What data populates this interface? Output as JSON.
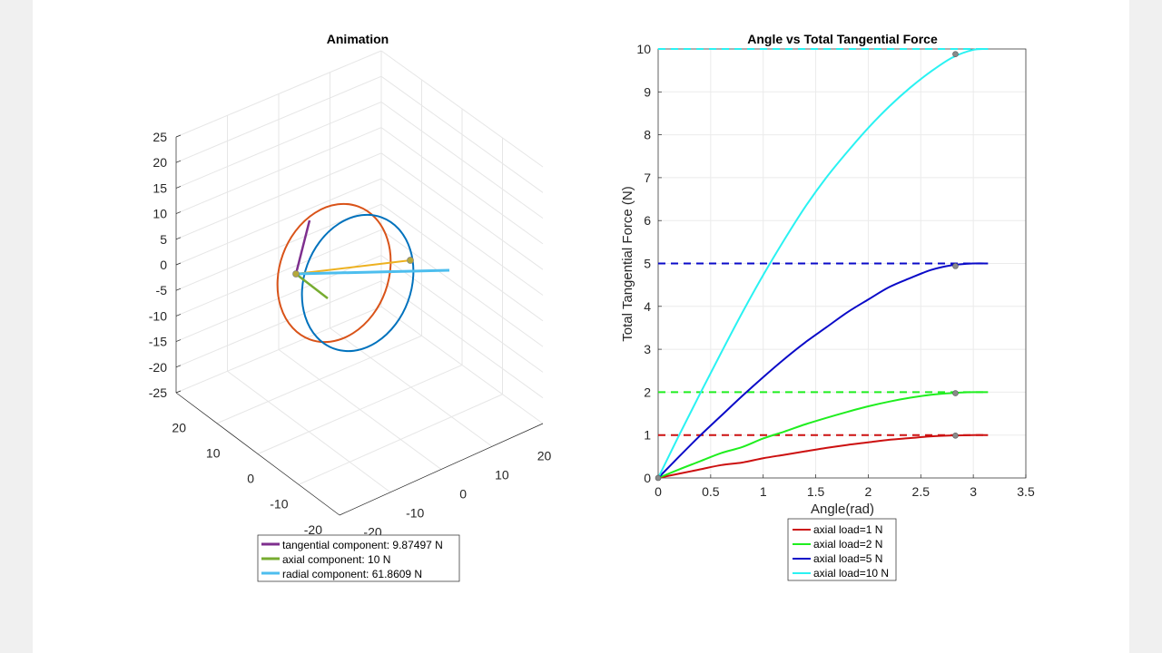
{
  "chart_data": [
    {
      "type": "line",
      "title": "Animation",
      "is_3d": true,
      "grid": true,
      "zlim": [
        -25,
        25
      ],
      "xlim": [
        -20,
        20
      ],
      "ylim": [
        -20,
        20
      ],
      "z_ticks": [
        "25",
        "20",
        "15",
        "10",
        "5",
        "0",
        "-5",
        "-10",
        "-15",
        "-20",
        "-25"
      ],
      "y_ticks": [
        "20",
        "10",
        "0",
        "-10",
        "-20"
      ],
      "x_ticks": [
        "20",
        "10",
        "0",
        "-10",
        "-20"
      ],
      "legend": {
        "position": "bottom",
        "entries": [
          {
            "label": "tangential component: 9.87497 N",
            "color": "#7e2f8e"
          },
          {
            "label": "axial component: 10 N",
            "color": "#77ac30"
          },
          {
            "label": "radial component: 61.8609 N",
            "color": "#4dbeee"
          }
        ]
      },
      "extra_series_colors": {
        "circle_a": "#d95319",
        "circle_b": "#0072bd",
        "link": "#edb120"
      }
    },
    {
      "type": "line",
      "title": "Angle vs Total Tangential Force",
      "xlabel": "Angle(rad)",
      "ylabel": "Total Tangential Force (N)",
      "xlim": [
        0,
        3.5
      ],
      "ylim": [
        0,
        10
      ],
      "x_ticks": [
        0,
        0.5,
        1,
        1.5,
        2,
        2.5,
        3,
        3.5
      ],
      "x_tick_labels": [
        "0",
        "0.5",
        "1",
        "1.5",
        "2",
        "2.5",
        "3",
        "3.5"
      ],
      "y_ticks": [
        0,
        1,
        2,
        3,
        4,
        5,
        6,
        7,
        8,
        9,
        10
      ],
      "y_tick_labels": [
        "0",
        "1",
        "2",
        "3",
        "4",
        "5",
        "6",
        "7",
        "8",
        "9",
        "10"
      ],
      "grid": true,
      "legend_position": "bottom",
      "marker_angle": 2.83,
      "series": [
        {
          "name": "axial load=1 N",
          "load": 1,
          "color": "#cc1010",
          "x": [
            0,
            0.2,
            0.4,
            0.6,
            0.8,
            1.0,
            1.2,
            1.4,
            1.6,
            1.8,
            2.0,
            2.2,
            2.4,
            2.6,
            2.8,
            3.0,
            3.14
          ],
          "y": [
            0,
            0.1,
            0.2,
            0.3,
            0.36,
            0.46,
            0.54,
            0.62,
            0.7,
            0.77,
            0.83,
            0.89,
            0.93,
            0.97,
            0.99,
            1.0,
            1.0
          ]
        },
        {
          "name": "axial load=2 N",
          "load": 2,
          "color": "#1fee1f",
          "x": [
            0,
            0.2,
            0.4,
            0.6,
            0.8,
            1.0,
            1.2,
            1.4,
            1.6,
            1.8,
            2.0,
            2.2,
            2.4,
            2.6,
            2.8,
            3.0,
            3.14
          ],
          "y": [
            0,
            0.2,
            0.39,
            0.58,
            0.72,
            0.92,
            1.08,
            1.25,
            1.4,
            1.54,
            1.67,
            1.78,
            1.87,
            1.94,
            1.98,
            2.0,
            2.0
          ]
        },
        {
          "name": "axial load=5 N",
          "load": 5,
          "color": "#0a0ac8",
          "x": [
            0,
            0.2,
            0.4,
            0.6,
            0.8,
            1.0,
            1.2,
            1.4,
            1.6,
            1.8,
            2.0,
            2.2,
            2.4,
            2.6,
            2.8,
            3.0,
            3.14
          ],
          "y": [
            0,
            0.5,
            0.99,
            1.45,
            1.91,
            2.35,
            2.77,
            3.16,
            3.51,
            3.86,
            4.16,
            4.45,
            4.66,
            4.85,
            4.96,
            5.0,
            5.0
          ]
        },
        {
          "name": "axial load=10 N",
          "load": 10,
          "color": "#2af2f2",
          "x": [
            0,
            0.2,
            0.4,
            0.6,
            0.8,
            1.0,
            1.2,
            1.4,
            1.6,
            1.8,
            2.0,
            2.2,
            2.4,
            2.6,
            2.8,
            3.0,
            3.14
          ],
          "y": [
            0,
            1.0,
            1.97,
            2.92,
            3.85,
            4.73,
            5.55,
            6.32,
            7.0,
            7.6,
            8.16,
            8.66,
            9.1,
            9.48,
            9.8,
            9.98,
            10.0
          ]
        }
      ]
    }
  ]
}
